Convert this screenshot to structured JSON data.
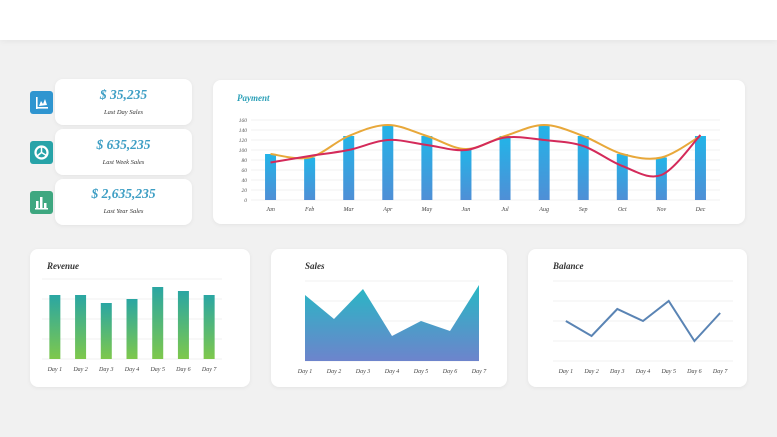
{
  "kpis": [
    {
      "value": "$ 35,235",
      "label": "Last Day Sales",
      "icon": "bar-chart-icon",
      "color": "#2f95d0"
    },
    {
      "value": "$ 635,235",
      "label": "Last Week Sales",
      "icon": "pie-chart-icon",
      "color": "#27a3a8"
    },
    {
      "value": "$ 2,635,235",
      "label": "Last Year Sales",
      "icon": "column-chart-icon",
      "color": "#3ea780"
    }
  ],
  "payment": {
    "title": "Payment",
    "chart_data": {
      "type": "bar",
      "categories": [
        "Jan",
        "Feb",
        "Mar",
        "Apr",
        "May",
        "Jun",
        "Jul",
        "Aug",
        "Sep",
        "Oct",
        "Nov",
        "Dec"
      ],
      "ylim": [
        0,
        160
      ],
      "yticks": [
        0,
        20,
        40,
        60,
        80,
        100,
        120,
        140,
        160
      ],
      "series": [
        {
          "type": "bar",
          "values": [
            92,
            85,
            128,
            150,
            128,
            102,
            128,
            150,
            128,
            92,
            85,
            128
          ],
          "color": "#2ea1de"
        },
        {
          "type": "line",
          "values": [
            92,
            85,
            128,
            150,
            128,
            102,
            128,
            150,
            128,
            92,
            85,
            128
          ],
          "color": "#e8a83a"
        },
        {
          "type": "line",
          "values": [
            75,
            88,
            100,
            120,
            110,
            100,
            125,
            120,
            108,
            68,
            50,
            130
          ],
          "color": "#d42a5a"
        }
      ]
    }
  },
  "revenue": {
    "title": "Revenue",
    "chart_data": {
      "type": "bar",
      "categories": [
        "Day 1",
        "Day 2",
        "Day 3",
        "Day 4",
        "Day 5",
        "Day 6",
        "Day 7"
      ],
      "values": [
        64,
        64,
        56,
        60,
        72,
        68,
        64
      ],
      "ylim": [
        0,
        80
      ],
      "gradient": [
        "#2aa6a3",
        "#7ec84c"
      ]
    }
  },
  "sales": {
    "title": "Sales",
    "chart_data": {
      "type": "area",
      "categories": [
        "Day 1",
        "Day 2",
        "Day 3",
        "Day 4",
        "Day 5",
        "Day 6",
        "Day 7"
      ],
      "values": [
        66,
        42,
        72,
        25,
        40,
        30,
        76
      ],
      "ylim": [
        0,
        80
      ],
      "gradient": [
        "#27b8c4",
        "#6d84cc"
      ]
    }
  },
  "balance": {
    "title": "Balance",
    "chart_data": {
      "type": "line",
      "categories": [
        "Day 1",
        "Day 2",
        "Day 3",
        "Day 4",
        "Day 5",
        "Day 6",
        "Day 7"
      ],
      "values": [
        40,
        25,
        52,
        40,
        60,
        20,
        48
      ],
      "ylim": [
        0,
        80
      ],
      "color": "#5a84b4"
    }
  }
}
